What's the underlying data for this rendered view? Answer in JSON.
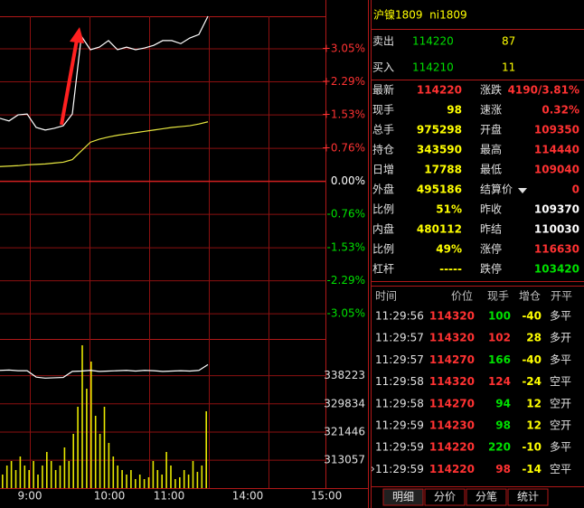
{
  "chart": {
    "ylim_pct": [
      -3.63,
      3.8
    ],
    "price_ticks": [
      {
        "value": 3.05,
        "label": "+3.05%"
      },
      {
        "value": 2.29,
        "label": "+2.29%"
      },
      {
        "value": 1.53,
        "label": "+1.53%"
      },
      {
        "value": 0.76,
        "label": "+0.76%"
      },
      {
        "value": 0,
        "label": "0.00%"
      },
      {
        "value": -0.76,
        "label": "-0.76%"
      },
      {
        "value": -1.53,
        "label": "-1.53%"
      },
      {
        "value": -2.29,
        "label": "-2.29%"
      },
      {
        "value": -3.05,
        "label": "-3.05%"
      }
    ],
    "ylim_oi": [
      304756,
      348340
    ],
    "volume_ticks": [
      338223,
      329834,
      321446,
      313057
    ],
    "time_labels": [
      "9:00",
      "10:00",
      "11:00",
      "14:00",
      "15:00"
    ],
    "price_pct": [
      1.45,
      1.39,
      1.53,
      1.55,
      1.24,
      1.18,
      1.22,
      1.28,
      1.55,
      3.34,
      3.03,
      3.09,
      3.24,
      3.03,
      3.09,
      3.03,
      3.07,
      3.13,
      3.24,
      3.24,
      3.17,
      3.3,
      3.38,
      3.8
    ],
    "avg_pct": [
      0.34,
      0.35,
      0.36,
      0.38,
      0.39,
      0.4,
      0.42,
      0.44,
      0.5,
      0.7,
      0.9,
      0.97,
      1.02,
      1.06,
      1.09,
      1.12,
      1.15,
      1.18,
      1.21,
      1.24,
      1.26,
      1.28,
      1.32,
      1.37
    ],
    "open_interest": [
      339800,
      339900,
      339700,
      339700,
      337800,
      337500,
      337600,
      337700,
      339500,
      339600,
      339800,
      339500,
      339600,
      339700,
      339800,
      339600,
      339800,
      339700,
      339500,
      339600,
      339700,
      339600,
      339800,
      341500
    ],
    "volume": [
      15,
      25,
      30,
      20,
      35,
      25,
      20,
      30,
      15,
      25,
      40,
      30,
      20,
      25,
      45,
      30,
      60,
      90,
      158,
      110,
      140,
      80,
      60,
      90,
      50,
      35,
      25,
      20,
      15,
      20,
      10,
      15,
      10,
      12,
      30,
      20,
      15,
      40,
      25,
      10,
      12,
      20,
      15,
      30,
      18,
      25,
      85
    ],
    "colors": {
      "price": "#ffffff",
      "avg": "#e8e840",
      "volume": "#e8e800",
      "oi": "#ffffff",
      "up": "#ff3232",
      "down": "#00e000",
      "flat": "#ffffff",
      "grid": "#8b1010"
    }
  },
  "quote": {
    "title": "沪镍1809  ni1809",
    "ask": {
      "label": "卖出",
      "price": "114220",
      "qty": "87"
    },
    "bid": {
      "label": "买入",
      "price": "114210",
      "qty": "11"
    },
    "left": [
      {
        "label": "最新",
        "value": "114220",
        "color": "#ff3232"
      },
      {
        "label": "现手",
        "value": "98",
        "color": "#ffff00"
      },
      {
        "label": "总手",
        "value": "975298",
        "color": "#ffff00"
      },
      {
        "label": "持仓",
        "value": "343590",
        "color": "#ffff00"
      },
      {
        "label": "日增",
        "value": "17788",
        "color": "#ffff00"
      },
      {
        "label": "外盘",
        "value": "495186",
        "color": "#ffff00"
      },
      {
        "label": "比例",
        "value": "51%",
        "color": "#ffff00"
      },
      {
        "label": "内盘",
        "value": "480112",
        "color": "#ffff00"
      },
      {
        "label": "比例",
        "value": "49%",
        "color": "#ffff00"
      },
      {
        "label": "杠杆",
        "value": "-----",
        "color": "#ffff00"
      }
    ],
    "right": [
      {
        "label": "涨跌",
        "value": "4190/3.81%",
        "color": "#ff3232"
      },
      {
        "label": "速涨",
        "value": "0.32%",
        "color": "#ff3232"
      },
      {
        "label": "开盘",
        "value": "109350",
        "color": "#ff3232"
      },
      {
        "label": "最高",
        "value": "114440",
        "color": "#ff3232"
      },
      {
        "label": "最低",
        "value": "109040",
        "color": "#ff3232"
      },
      {
        "label": "结算价",
        "value": "0",
        "color": "#ff3232"
      },
      {
        "label": "昨收",
        "value": "109370",
        "color": "#ffffff"
      },
      {
        "label": "昨结",
        "value": "110030",
        "color": "#ffffff"
      },
      {
        "label": "涨停",
        "value": "116630",
        "color": "#ff3232"
      },
      {
        "label": "跌停",
        "value": "103420",
        "color": "#00e000"
      }
    ],
    "trade_header": [
      "时间",
      "价位",
      "现手",
      "增仓",
      "开平"
    ],
    "trades": [
      {
        "time": "11:29:56",
        "price": "114320",
        "qty": "100",
        "qty_color": "#00e000",
        "oi": "-40",
        "type": "多平"
      },
      {
        "time": "11:29:57",
        "price": "114320",
        "qty": "102",
        "qty_color": "#ff3232",
        "oi": "28",
        "type": "多开"
      },
      {
        "time": "11:29:57",
        "price": "114270",
        "qty": "166",
        "qty_color": "#00e000",
        "oi": "-40",
        "type": "多平"
      },
      {
        "time": "11:29:58",
        "price": "114320",
        "qty": "124",
        "qty_color": "#ff3232",
        "oi": "-24",
        "type": "空平"
      },
      {
        "time": "11:29:58",
        "price": "114270",
        "qty": "94",
        "qty_color": "#00e000",
        "oi": "12",
        "type": "空开"
      },
      {
        "time": "11:29:59",
        "price": "114230",
        "qty": "98",
        "qty_color": "#00e000",
        "oi": "12",
        "type": "空开"
      },
      {
        "time": "11:29:59",
        "price": "114220",
        "qty": "220",
        "qty_color": "#00e000",
        "oi": "-10",
        "type": "多平"
      },
      {
        "time": "11:29:59",
        "price": "114220",
        "qty": "98",
        "qty_color": "#ff3232",
        "oi": "-14",
        "type": "空平"
      }
    ],
    "tabs": [
      "明细",
      "分价",
      "分笔",
      "统计"
    ]
  }
}
